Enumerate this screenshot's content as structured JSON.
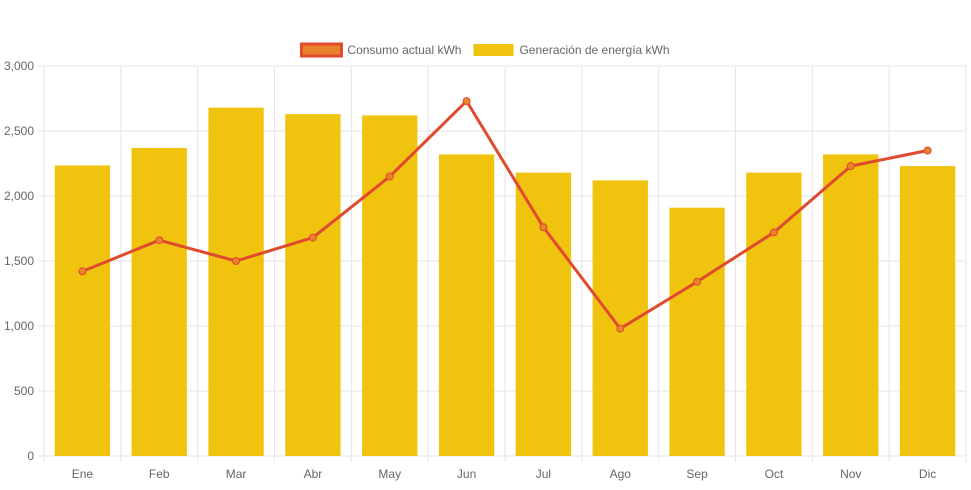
{
  "chart_data": {
    "type": "bar",
    "categories": [
      "Ene",
      "Feb",
      "Mar",
      "Abr",
      "May",
      "Jun",
      "Jul",
      "Ago",
      "Sep",
      "Oct",
      "Nov",
      "Dic"
    ],
    "series": [
      {
        "name": "Consumo actual kWh",
        "type": "line",
        "values": [
          1420,
          1660,
          1500,
          1680,
          2150,
          2730,
          1760,
          980,
          1340,
          1720,
          2230,
          2350
        ]
      },
      {
        "name": "Generación de energía kWh",
        "type": "bar",
        "values": [
          2235,
          2370,
          2680,
          2630,
          2620,
          2320,
          2180,
          2120,
          1910,
          2180,
          2320,
          2230
        ]
      }
    ],
    "ylim": [
      0,
      3000
    ],
    "yticks": [
      0,
      500,
      1000,
      1500,
      2000,
      2500,
      3000
    ],
    "ytick_labels": [
      "0",
      "500",
      "1,000",
      "1,500",
      "2,000",
      "2,500",
      "3,000"
    ],
    "grid": true,
    "legend_position": "top-center",
    "colors": {
      "line": "#e04a2f",
      "line_point_fill": "#e8832a",
      "bar": "#f0c40e",
      "grid": "#e6e6e6",
      "axis_text": "#666666"
    }
  }
}
